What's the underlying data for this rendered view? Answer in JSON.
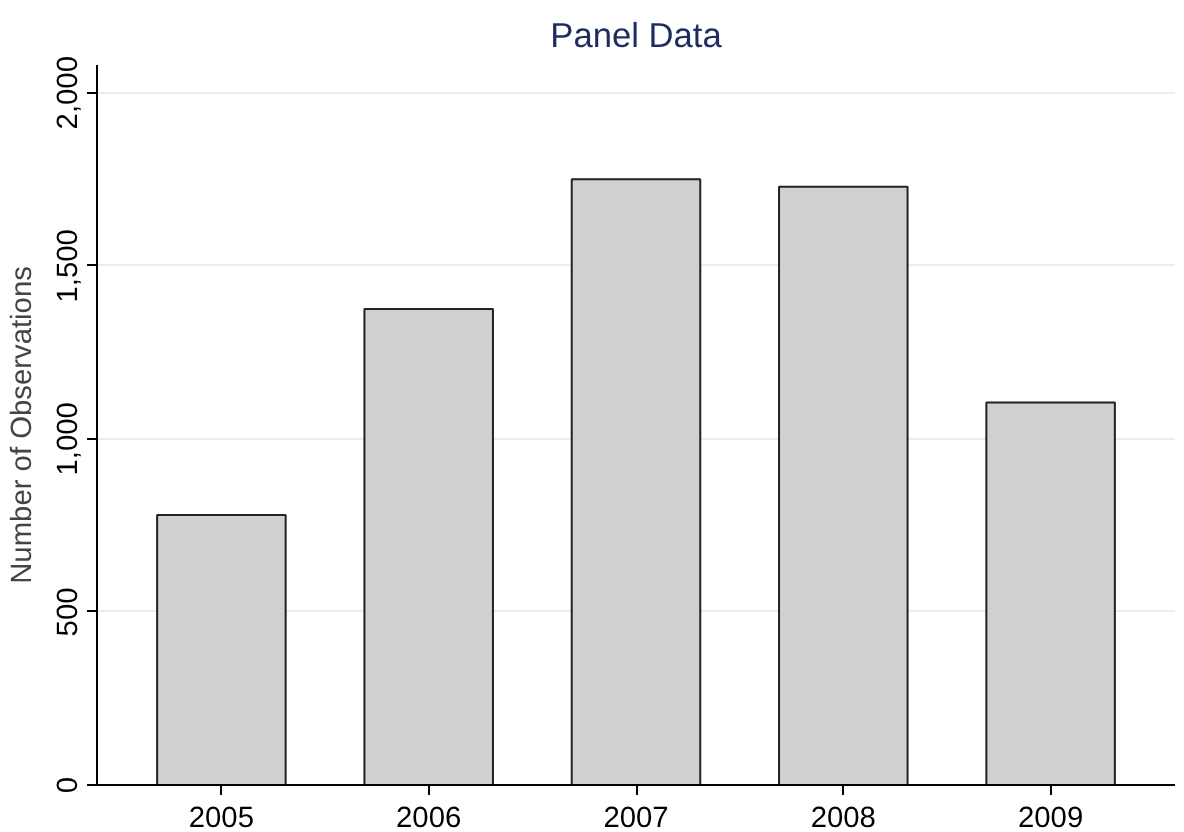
{
  "chart_data": {
    "type": "bar",
    "title": "Panel Data",
    "ylabel": "Number of Observations",
    "categories": [
      "2005",
      "2006",
      "2007",
      "2008",
      "2009"
    ],
    "values": [
      780,
      1375,
      1750,
      1728,
      1105
    ],
    "color": "#d0d0d0",
    "ylim": [
      0,
      2080
    ],
    "yticks": [
      {
        "value": 0,
        "label": "0"
      },
      {
        "value": 500,
        "label": "500"
      },
      {
        "value": 1000,
        "label": "1,000"
      },
      {
        "value": 1500,
        "label": "1,500"
      },
      {
        "value": 2000,
        "label": "2,000"
      }
    ],
    "grid": "y"
  }
}
